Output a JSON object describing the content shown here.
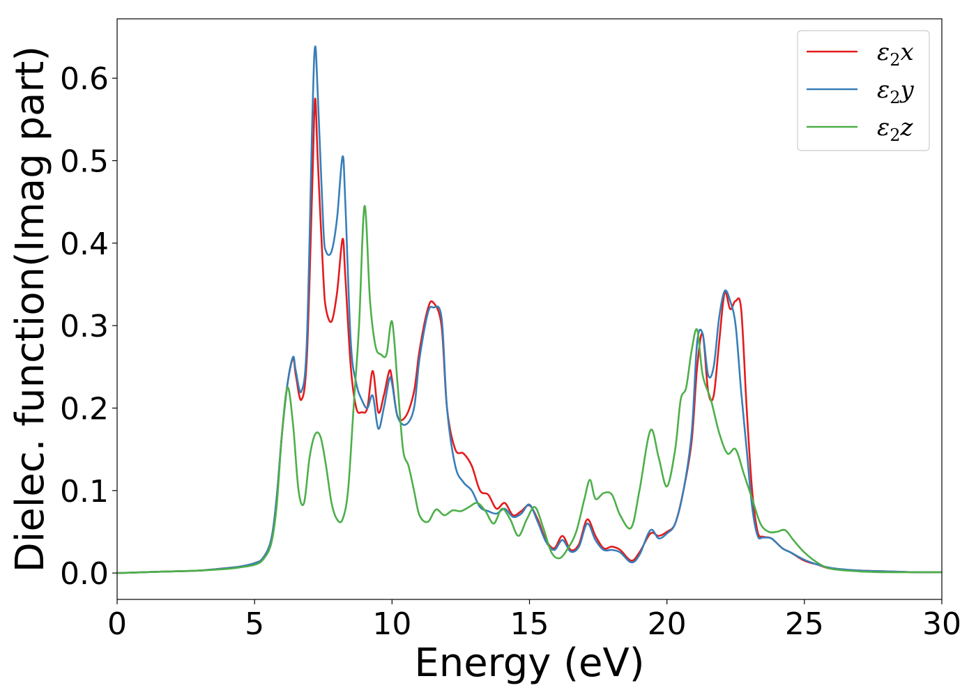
{
  "chart_data": {
    "type": "line",
    "xlabel": "Energy (eV)",
    "ylabel": "Dielec. function(Imag part)",
    "xlim": [
      0,
      30
    ],
    "ylim": [
      -0.032,
      0.672
    ],
    "xticks": [
      0,
      5,
      10,
      15,
      20,
      25,
      30
    ],
    "yticks": [
      0.0,
      0.1,
      0.2,
      0.3,
      0.4,
      0.5,
      0.6
    ],
    "ytick_labels": [
      "0.0",
      "0.1",
      "0.2",
      "0.3",
      "0.4",
      "0.5",
      "0.6"
    ],
    "grid": false,
    "legend_position": "top-right",
    "series": [
      {
        "name": "ε2x",
        "legend": {
          "base": "ε",
          "sub": "2",
          "axis": "x"
        },
        "color": "#e41a1c",
        "x": [
          0,
          1,
          2,
          3,
          4,
          4.5,
          5,
          5.3,
          5.6,
          5.8,
          6.0,
          6.2,
          6.4,
          6.5,
          6.7,
          6.9,
          7.1,
          7.2,
          7.3,
          7.5,
          7.6,
          7.8,
          8.0,
          8.2,
          8.3,
          8.5,
          8.7,
          8.9,
          9.1,
          9.3,
          9.5,
          9.7,
          9.9,
          10.0,
          10.2,
          10.5,
          10.8,
          11.0,
          11.3,
          11.5,
          11.8,
          12.0,
          12.3,
          12.6,
          12.9,
          13.2,
          13.5,
          13.8,
          14.1,
          14.4,
          14.7,
          15.0,
          15.3,
          15.6,
          15.9,
          16.2,
          16.5,
          16.8,
          17.1,
          17.4,
          17.7,
          18.0,
          18.3,
          18.7,
          19.0,
          19.4,
          19.7,
          20.0,
          20.3,
          20.6,
          20.9,
          21.1,
          21.3,
          21.5,
          21.7,
          21.9,
          22.1,
          22.3,
          22.5,
          22.7,
          22.9,
          23.1,
          23.3,
          23.5,
          23.8,
          24.2,
          24.5,
          25.0,
          25.5,
          26.0,
          27,
          28,
          29,
          30
        ],
        "values": [
          0,
          0.001,
          0.002,
          0.003,
          0.006,
          0.008,
          0.012,
          0.018,
          0.04,
          0.09,
          0.17,
          0.23,
          0.26,
          0.24,
          0.21,
          0.26,
          0.47,
          0.575,
          0.5,
          0.36,
          0.32,
          0.305,
          0.34,
          0.405,
          0.36,
          0.25,
          0.2,
          0.195,
          0.2,
          0.245,
          0.195,
          0.215,
          0.245,
          0.235,
          0.19,
          0.19,
          0.22,
          0.27,
          0.32,
          0.328,
          0.3,
          0.2,
          0.15,
          0.145,
          0.13,
          0.1,
          0.095,
          0.078,
          0.085,
          0.07,
          0.075,
          0.082,
          0.065,
          0.04,
          0.03,
          0.045,
          0.028,
          0.035,
          0.065,
          0.045,
          0.03,
          0.032,
          0.028,
          0.015,
          0.025,
          0.048,
          0.045,
          0.05,
          0.06,
          0.1,
          0.16,
          0.25,
          0.29,
          0.22,
          0.215,
          0.28,
          0.34,
          0.32,
          0.33,
          0.32,
          0.2,
          0.1,
          0.05,
          0.044,
          0.042,
          0.03,
          0.025,
          0.015,
          0.01,
          0.005,
          0.003,
          0.002,
          0.001,
          0.001
        ]
      },
      {
        "name": "ε2y",
        "legend": {
          "base": "ε",
          "sub": "2",
          "axis": "y"
        },
        "color": "#377eb8",
        "x": [
          0,
          1,
          2,
          3,
          4,
          4.5,
          5,
          5.3,
          5.6,
          5.8,
          6.0,
          6.2,
          6.4,
          6.5,
          6.7,
          6.9,
          7.1,
          7.2,
          7.3,
          7.5,
          7.6,
          7.8,
          8.0,
          8.2,
          8.3,
          8.5,
          8.7,
          8.9,
          9.1,
          9.3,
          9.5,
          9.7,
          9.9,
          10.0,
          10.2,
          10.5,
          10.8,
          11.0,
          11.3,
          11.5,
          11.8,
          12.0,
          12.3,
          12.6,
          12.9,
          13.2,
          13.5,
          13.8,
          14.1,
          14.4,
          14.7,
          15.0,
          15.3,
          15.6,
          15.9,
          16.2,
          16.5,
          16.8,
          17.1,
          17.4,
          17.7,
          18.0,
          18.3,
          18.7,
          19.0,
          19.4,
          19.7,
          20.0,
          20.3,
          20.6,
          20.9,
          21.1,
          21.3,
          21.5,
          21.7,
          21.9,
          22.1,
          22.3,
          22.5,
          22.7,
          22.9,
          23.1,
          23.3,
          23.5,
          23.8,
          24.2,
          24.5,
          25.0,
          25.5,
          26.0,
          27,
          28,
          29,
          30
        ],
        "values": [
          0,
          0.001,
          0.002,
          0.003,
          0.006,
          0.008,
          0.012,
          0.018,
          0.04,
          0.09,
          0.17,
          0.23,
          0.262,
          0.245,
          0.22,
          0.28,
          0.55,
          0.638,
          0.58,
          0.42,
          0.39,
          0.39,
          0.43,
          0.505,
          0.45,
          0.28,
          0.23,
          0.21,
          0.2,
          0.215,
          0.175,
          0.2,
          0.235,
          0.23,
          0.19,
          0.18,
          0.2,
          0.26,
          0.315,
          0.322,
          0.31,
          0.2,
          0.13,
          0.11,
          0.1,
          0.08,
          0.075,
          0.072,
          0.078,
          0.068,
          0.072,
          0.083,
          0.062,
          0.038,
          0.028,
          0.04,
          0.026,
          0.032,
          0.06,
          0.04,
          0.028,
          0.028,
          0.025,
          0.013,
          0.022,
          0.052,
          0.042,
          0.048,
          0.06,
          0.1,
          0.17,
          0.28,
          0.29,
          0.24,
          0.25,
          0.31,
          0.342,
          0.33,
          0.3,
          0.22,
          0.15,
          0.08,
          0.045,
          0.043,
          0.042,
          0.03,
          0.025,
          0.016,
          0.01,
          0.006,
          0.003,
          0.002,
          0.001,
          0.001
        ]
      },
      {
        "name": "ε2z",
        "legend": {
          "base": "ε",
          "sub": "2",
          "axis": "z"
        },
        "color": "#4daf4a",
        "x": [
          0,
          1,
          2,
          3,
          4,
          4.5,
          5,
          5.3,
          5.6,
          5.8,
          6.0,
          6.2,
          6.4,
          6.6,
          6.8,
          7.0,
          7.2,
          7.4,
          7.6,
          7.8,
          8.0,
          8.2,
          8.4,
          8.6,
          8.8,
          9.0,
          9.2,
          9.4,
          9.6,
          9.8,
          10.0,
          10.2,
          10.4,
          10.6,
          10.8,
          11.0,
          11.3,
          11.6,
          11.9,
          12.2,
          12.5,
          12.8,
          13.1,
          13.4,
          13.7,
          14.0,
          14.3,
          14.6,
          14.9,
          15.2,
          15.5,
          15.8,
          16.1,
          16.4,
          16.7,
          17.0,
          17.2,
          17.4,
          17.7,
          18.0,
          18.3,
          18.7,
          19.0,
          19.4,
          19.7,
          20.0,
          20.3,
          20.5,
          20.7,
          20.9,
          21.1,
          21.3,
          21.6,
          21.9,
          22.2,
          22.5,
          22.8,
          23.1,
          23.4,
          23.7,
          24.0,
          24.3,
          24.6,
          25.0,
          25.5,
          26.0,
          27,
          28,
          29,
          30
        ],
        "values": [
          0,
          0.001,
          0.002,
          0.003,
          0.005,
          0.007,
          0.01,
          0.016,
          0.035,
          0.08,
          0.17,
          0.225,
          0.18,
          0.1,
          0.085,
          0.14,
          0.168,
          0.165,
          0.13,
          0.085,
          0.065,
          0.065,
          0.1,
          0.2,
          0.3,
          0.445,
          0.33,
          0.275,
          0.265,
          0.265,
          0.305,
          0.23,
          0.15,
          0.13,
          0.1,
          0.07,
          0.062,
          0.077,
          0.07,
          0.076,
          0.075,
          0.08,
          0.085,
          0.075,
          0.06,
          0.078,
          0.065,
          0.045,
          0.065,
          0.08,
          0.055,
          0.025,
          0.018,
          0.03,
          0.05,
          0.09,
          0.113,
          0.09,
          0.097,
          0.095,
          0.07,
          0.055,
          0.1,
          0.173,
          0.14,
          0.105,
          0.15,
          0.21,
          0.225,
          0.27,
          0.295,
          0.24,
          0.21,
          0.17,
          0.145,
          0.15,
          0.12,
          0.09,
          0.06,
          0.05,
          0.05,
          0.052,
          0.04,
          0.025,
          0.012,
          0.005,
          0.002,
          0.001,
          0.001,
          0.001
        ]
      }
    ]
  }
}
